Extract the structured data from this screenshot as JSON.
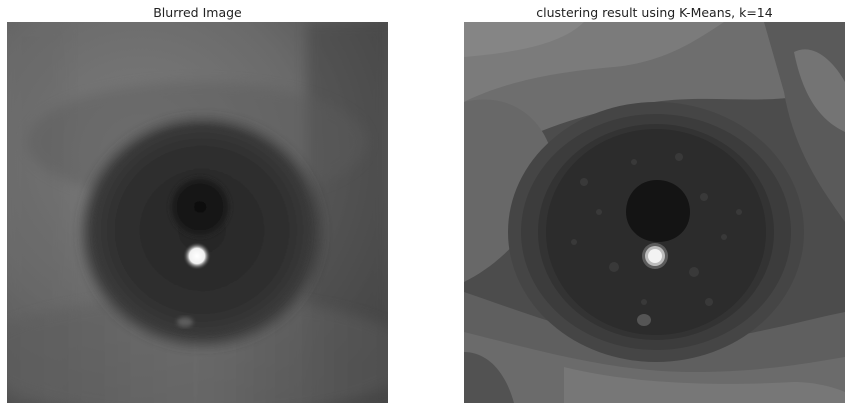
{
  "panels": {
    "left": {
      "title": "Blurred Image",
      "content_icon": "blurred-eye-photo"
    },
    "right": {
      "title": "clustering result using K-Means, k=14",
      "content_icon": "kmeans-segmented-eye-photo"
    }
  },
  "colors": {
    "background": "#ffffff",
    "title_text": "#222222",
    "sclera_light": "#7a7a7a",
    "iris": "#2c2c2c",
    "pupil": "#121212",
    "glint": "#f4f4f4"
  }
}
